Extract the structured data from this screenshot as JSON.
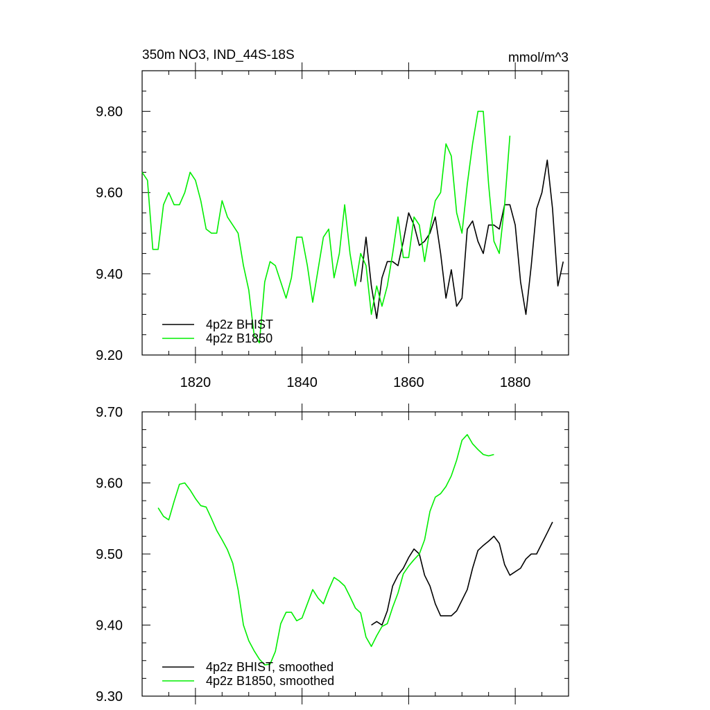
{
  "figure": {
    "title": "350m NO3, IND_44S-18S",
    "units": "mmol/m^3"
  },
  "colors": {
    "bhist": "#000000",
    "b1850": "#00ee00"
  },
  "chart_data": [
    {
      "type": "line",
      "title": "350m NO3, IND_44S-18S",
      "units": "mmol/m^3",
      "xlim": [
        1810,
        1890
      ],
      "ylim": [
        9.2,
        9.9
      ],
      "x_ticks": [
        1820,
        1840,
        1860,
        1880
      ],
      "x_tick_labels": [
        "1820",
        "1840",
        "1860",
        "1880"
      ],
      "y_ticks": [
        9.2,
        9.4,
        9.6,
        9.8
      ],
      "y_tick_labels": [
        "9.20",
        "9.40",
        "9.60",
        "9.80"
      ],
      "legend_position": "bottom-left",
      "series": [
        {
          "name": "4p2z BHIST",
          "color_key": "bhist",
          "x": [
            1851,
            1852,
            1853,
            1854,
            1855,
            1856,
            1857,
            1858,
            1859,
            1860,
            1861,
            1862,
            1863,
            1864,
            1865,
            1866,
            1867,
            1868,
            1869,
            1870,
            1871,
            1872,
            1873,
            1874,
            1875,
            1876,
            1877,
            1878,
            1879,
            1880,
            1881,
            1882,
            1883,
            1884,
            1885,
            1886,
            1887,
            1888,
            1889
          ],
          "y": [
            9.38,
            9.49,
            9.37,
            9.29,
            9.39,
            9.43,
            9.43,
            9.42,
            9.48,
            9.55,
            9.52,
            9.47,
            9.48,
            9.5,
            9.54,
            9.45,
            9.34,
            9.41,
            9.32,
            9.34,
            9.51,
            9.53,
            9.48,
            9.45,
            9.52,
            9.52,
            9.51,
            9.57,
            9.57,
            9.52,
            9.38,
            9.3,
            9.42,
            9.56,
            9.6,
            9.68,
            9.56,
            9.37,
            9.43
          ]
        },
        {
          "name": "4p2z B1850",
          "color_key": "b1850",
          "x": [
            1810,
            1811,
            1812,
            1813,
            1814,
            1815,
            1816,
            1817,
            1818,
            1819,
            1820,
            1821,
            1822,
            1823,
            1824,
            1825,
            1826,
            1827,
            1828,
            1829,
            1830,
            1831,
            1832,
            1833,
            1834,
            1835,
            1836,
            1837,
            1838,
            1839,
            1840,
            1841,
            1842,
            1843,
            1844,
            1845,
            1846,
            1847,
            1848,
            1849,
            1850,
            1851,
            1852,
            1853,
            1854,
            1855,
            1856,
            1857,
            1858,
            1859,
            1860,
            1861,
            1862,
            1863,
            1864,
            1865,
            1866,
            1867,
            1868,
            1869,
            1870,
            1871,
            1872,
            1873,
            1874,
            1875,
            1876,
            1877,
            1878,
            1879
          ],
          "y": [
            9.65,
            9.63,
            9.46,
            9.46,
            9.57,
            9.6,
            9.57,
            9.57,
            9.6,
            9.65,
            9.63,
            9.58,
            9.51,
            9.5,
            9.5,
            9.58,
            9.54,
            9.52,
            9.5,
            9.42,
            9.36,
            9.25,
            9.23,
            9.38,
            9.43,
            9.42,
            9.38,
            9.34,
            9.39,
            9.49,
            9.49,
            9.42,
            9.33,
            9.41,
            9.49,
            9.51,
            9.39,
            9.45,
            9.57,
            9.45,
            9.37,
            9.45,
            9.42,
            9.3,
            9.37,
            9.32,
            9.37,
            9.45,
            9.54,
            9.44,
            9.44,
            9.54,
            9.52,
            9.43,
            9.51,
            9.58,
            9.6,
            9.72,
            9.69,
            9.55,
            9.5,
            9.62,
            9.72,
            9.8,
            9.8,
            9.62,
            9.48,
            9.45,
            9.57,
            9.74
          ]
        }
      ]
    },
    {
      "type": "line",
      "xlim": [
        1810,
        1890
      ],
      "ylim": [
        9.3,
        9.7
      ],
      "x_ticks": [
        1820,
        1840,
        1860,
        1880
      ],
      "y_ticks": [
        9.3,
        9.4,
        9.5,
        9.6,
        9.7
      ],
      "y_tick_labels": [
        "9.30",
        "9.40",
        "9.50",
        "9.60",
        "9.70"
      ],
      "legend_position": "bottom-left",
      "series": [
        {
          "name": "4p2z BHIST, smoothed",
          "color_key": "bhist",
          "x": [
            1853,
            1854,
            1855,
            1856,
            1857,
            1858,
            1859,
            1860,
            1861,
            1862,
            1863,
            1864,
            1865,
            1866,
            1867,
            1868,
            1869,
            1870,
            1871,
            1872,
            1873,
            1874,
            1875,
            1876,
            1877,
            1878,
            1879,
            1880,
            1881,
            1882,
            1883,
            1884,
            1885,
            1886,
            1887
          ],
          "y": [
            9.4,
            9.405,
            9.4,
            9.42,
            9.455,
            9.47,
            9.48,
            9.495,
            9.507,
            9.5,
            9.47,
            9.455,
            9.43,
            9.413,
            9.413,
            9.413,
            9.42,
            9.435,
            9.45,
            9.48,
            9.505,
            9.512,
            9.518,
            9.525,
            9.515,
            9.485,
            9.47,
            9.475,
            9.48,
            9.493,
            9.5,
            9.5,
            9.515,
            9.53,
            9.545
          ]
        },
        {
          "name": "4p2z B1850, smoothed",
          "color_key": "b1850",
          "x": [
            1813,
            1814,
            1815,
            1816,
            1817,
            1818,
            1819,
            1820,
            1821,
            1822,
            1823,
            1824,
            1825,
            1826,
            1827,
            1828,
            1829,
            1830,
            1831,
            1832,
            1833,
            1834,
            1835,
            1836,
            1837,
            1838,
            1839,
            1840,
            1841,
            1842,
            1843,
            1844,
            1845,
            1846,
            1847,
            1848,
            1849,
            1850,
            1851,
            1852,
            1853,
            1854,
            1855,
            1856,
            1857,
            1858,
            1859,
            1860,
            1861,
            1862,
            1863,
            1864,
            1865,
            1866,
            1867,
            1868,
            1869,
            1870,
            1871,
            1872,
            1873,
            1874,
            1875,
            1876
          ],
          "y": [
            9.565,
            9.553,
            9.548,
            9.574,
            9.598,
            9.6,
            9.59,
            9.578,
            9.568,
            9.566,
            9.55,
            9.533,
            9.52,
            9.506,
            9.487,
            9.45,
            9.4,
            9.378,
            9.364,
            9.352,
            9.344,
            9.345,
            9.363,
            9.402,
            9.418,
            9.418,
            9.406,
            9.41,
            9.43,
            9.45,
            9.438,
            9.43,
            9.45,
            9.467,
            9.462,
            9.455,
            9.44,
            9.424,
            9.417,
            9.383,
            9.37,
            9.385,
            9.398,
            9.402,
            9.425,
            9.445,
            9.472,
            9.483,
            9.492,
            9.5,
            9.52,
            9.56,
            9.58,
            9.585,
            9.595,
            9.61,
            9.632,
            9.66,
            9.668,
            9.655,
            9.647,
            9.64,
            9.638,
            9.64
          ]
        }
      ]
    }
  ]
}
